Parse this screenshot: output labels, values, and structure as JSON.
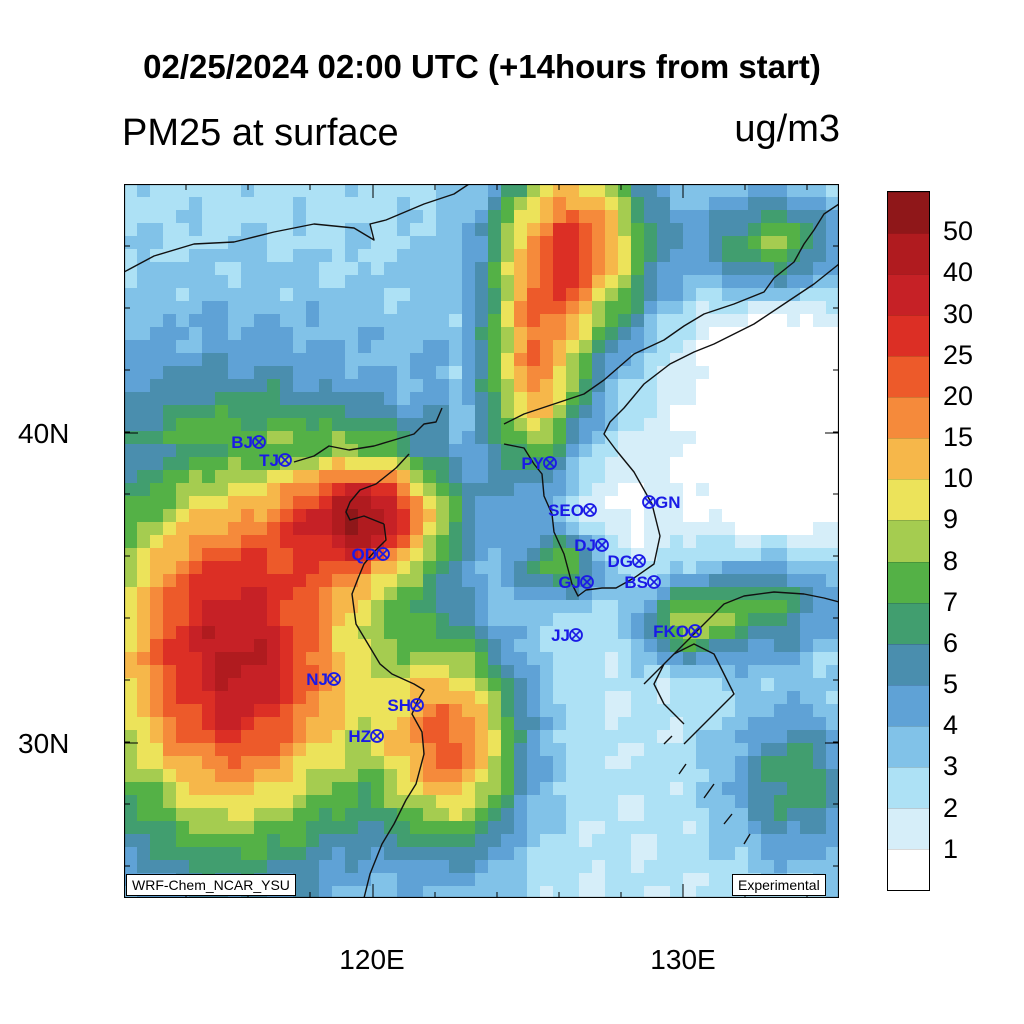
{
  "title": "02/25/2024 02:00 UTC (+14hours from start)",
  "left_title": "PM25 at surface",
  "right_title": "ug/m3",
  "lat_labels": [
    "40N",
    "30N"
  ],
  "lon_labels": [
    "120E",
    "130E"
  ],
  "bottom_left_tag": "WRF-Chem_NCAR_YSU",
  "bottom_right_tag": "Experimental",
  "colorbar": {
    "levels": [
      "1",
      "2",
      "3",
      "4",
      "5",
      "6",
      "7",
      "8",
      "9",
      "10",
      "15",
      "20",
      "25",
      "30",
      "40",
      "50"
    ],
    "colors": [
      "#ffffff",
      "#d6eef9",
      "#ade1f5",
      "#81c2e8",
      "#5fa2d6",
      "#4a8eae",
      "#419e6f",
      "#54b146",
      "#a5cc50",
      "#ece35a",
      "#f6b74a",
      "#f58a3b",
      "#ed5a2a",
      "#dc2f25",
      "#c62126",
      "#b01b1f",
      "#8f1719"
    ]
  },
  "stations": [
    {
      "code": "BJ"
    },
    {
      "code": "TJ"
    },
    {
      "code": "PY"
    },
    {
      "code": "SEO"
    },
    {
      "code": "GN"
    },
    {
      "code": "QD"
    },
    {
      "code": "DJ"
    },
    {
      "code": "DG"
    },
    {
      "code": "GJ"
    },
    {
      "code": "BS"
    },
    {
      "code": "JJ"
    },
    {
      "code": "FKO"
    },
    {
      "code": "NJ"
    },
    {
      "code": "SH"
    },
    {
      "code": "HZ"
    }
  ]
}
